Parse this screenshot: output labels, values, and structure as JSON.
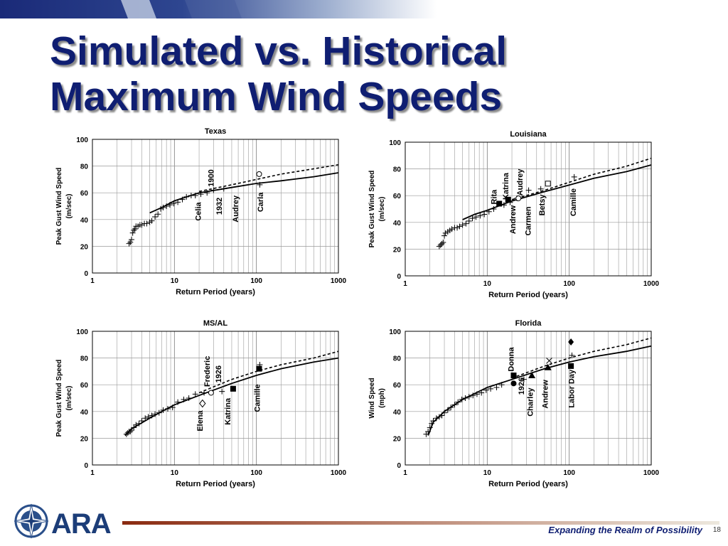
{
  "slide": {
    "title_line1": "Simulated vs. Historical",
    "title_line2": "Maximum Wind Speeds",
    "tagline": "Expanding the Realm of Possibility",
    "page_number": "18",
    "logo_text": "ARA",
    "colors": {
      "title": "#0f1e72",
      "tagline": "#0f1e72",
      "rule_dark": "#8a2a10",
      "rule_light": "#e8e3d8"
    }
  },
  "chart_data": [
    {
      "type": "scatter",
      "title": "Texas",
      "xlabel": "Return Period (years)",
      "ylabel": "Peak Gust Wind Speed (m/sec)",
      "x_scale": "log",
      "xlim": [
        1,
        1000
      ],
      "ylim": [
        0,
        100
      ],
      "x_ticks": [
        "1",
        "10",
        "100",
        "1000"
      ],
      "y_ticks": [
        "0",
        "20",
        "40",
        "60",
        "80",
        "100"
      ],
      "grid": true,
      "series": [
        {
          "line": "solid",
          "x": [
            5,
            7,
            10,
            20,
            50,
            100,
            200,
            500,
            1000
          ],
          "y": [
            45,
            49,
            54,
            60,
            64,
            67,
            69,
            72,
            75
          ]
        },
        {
          "line": "dashed",
          "x": [
            20,
            50,
            100,
            200,
            500,
            1000
          ],
          "y": [
            61,
            66,
            70,
            74,
            78,
            81
          ]
        },
        {
          "marker": "plus",
          "x": [
            2.8,
            2.9,
            3.0,
            3.1,
            3.2,
            3.3,
            3.4,
            3.6,
            3.8,
            4.0,
            4.3,
            4.6,
            5.0,
            5.3,
            5.8,
            6.3,
            6.8,
            7.3,
            8.0,
            8.8,
            9.8,
            11,
            12.5,
            14,
            16,
            18,
            21,
            25,
            30,
            40,
            110
          ],
          "y": [
            22,
            23,
            25,
            30,
            32,
            33,
            35,
            35,
            36,
            36,
            37,
            37,
            38,
            39,
            42,
            44,
            48,
            49,
            50,
            51,
            52,
            53,
            55,
            57,
            58,
            58,
            59,
            60,
            62,
            63,
            66
          ]
        },
        {
          "marker": "circle",
          "x": [
            108
          ],
          "y": [
            74
          ]
        }
      ],
      "annotations": [
        {
          "text": "Celia",
          "x": 21,
          "y": 46
        },
        {
          "text": "1900",
          "x": 30,
          "y": 71
        },
        {
          "text": "1932",
          "x": 38,
          "y": 50
        },
        {
          "text": "Audrey",
          "x": 60,
          "y": 48
        },
        {
          "text": "Carla",
          "x": 120,
          "y": 53
        }
      ]
    },
    {
      "type": "scatter",
      "title": "Louisiana",
      "xlabel": "Return Period (years)",
      "ylabel": "Peak Gust Wind Speed (m/sec)",
      "x_scale": "log",
      "xlim": [
        1,
        1000
      ],
      "ylim": [
        0,
        100
      ],
      "x_ticks": [
        "1",
        "10",
        "100",
        "1000"
      ],
      "y_ticks": [
        "0",
        "20",
        "40",
        "60",
        "80",
        "100"
      ],
      "grid": true,
      "series": [
        {
          "line": "solid",
          "x": [
            5,
            7,
            10,
            20,
            50,
            100,
            200,
            500,
            1000
          ],
          "y": [
            42,
            46,
            49,
            56,
            63,
            68,
            73,
            78,
            83
          ]
        },
        {
          "line": "dashed",
          "x": [
            20,
            50,
            100,
            200,
            500,
            1000
          ],
          "y": [
            57,
            64,
            70,
            76,
            82,
            88
          ]
        },
        {
          "marker": "plus",
          "x": [
            2.6,
            2.7,
            2.8,
            2.9,
            3.0,
            3.1,
            3.3,
            3.5,
            3.7,
            4.0,
            4.3,
            4.6,
            5.0,
            5.5,
            6.0,
            6.6,
            7.3,
            8.2,
            9.2,
            10.5,
            12,
            16,
            19,
            23,
            32,
            45,
            115
          ],
          "y": [
            22,
            23,
            24,
            25,
            30,
            32,
            33,
            34,
            35,
            36,
            36,
            37,
            38,
            39,
            41,
            43,
            44,
            45,
            46,
            48,
            50,
            53,
            55,
            58,
            64,
            65,
            74
          ]
        },
        {
          "marker": "square-filled",
          "x": [
            14,
            18
          ],
          "y": [
            54,
            57
          ]
        },
        {
          "marker": "square-open",
          "x": [
            55
          ],
          "y": [
            69
          ]
        },
        {
          "marker": "circle",
          "x": [
            24
          ],
          "y": [
            58
          ]
        }
      ],
      "annotations": [
        {
          "text": "Rita",
          "x": 13,
          "y": 59
        },
        {
          "text": "Katrina",
          "x": 18,
          "y": 67
        },
        {
          "text": "Audrey",
          "x": 27,
          "y": 70
        },
        {
          "text": "Andrew",
          "x": 22,
          "y": 42
        },
        {
          "text": "Carmen",
          "x": 34,
          "y": 41
        },
        {
          "text": "Betsy",
          "x": 50,
          "y": 53
        },
        {
          "text": "Camille",
          "x": 120,
          "y": 55
        }
      ]
    },
    {
      "type": "scatter",
      "title": "MS/AL",
      "xlabel": "Return Period (years)",
      "ylabel": "Peak Gust Wind Speed (m/sec)",
      "x_scale": "log",
      "xlim": [
        1,
        1000
      ],
      "ylim": [
        0,
        100
      ],
      "x_ticks": [
        "1",
        "10",
        "100",
        "1000"
      ],
      "y_ticks": [
        "0",
        "20",
        "40",
        "60",
        "80",
        "100"
      ],
      "grid": true,
      "series": [
        {
          "line": "solid",
          "x": [
            2.5,
            3,
            5,
            7,
            10,
            20,
            50,
            100,
            200,
            500,
            1000
          ],
          "y": [
            22,
            27,
            35,
            40,
            45,
            52,
            61,
            67,
            72,
            77,
            80
          ]
        },
        {
          "line": "dashed",
          "x": [
            20,
            50,
            100,
            200,
            500,
            1000
          ],
          "y": [
            54,
            64,
            70,
            75,
            80,
            85
          ]
        },
        {
          "marker": "plus",
          "x": [
            2.6,
            2.7,
            2.8,
            2.9,
            3.0,
            3.2,
            3.4,
            3.7,
            4.0,
            4.4,
            4.8,
            5.3,
            5.8,
            6.5,
            7.3,
            8.3,
            9.5,
            11,
            13,
            15,
            18,
            23,
            38,
            110
          ],
          "y": [
            23,
            24,
            25,
            25,
            26,
            28,
            30,
            31,
            33,
            35,
            36,
            37,
            38,
            39,
            41,
            42,
            43,
            47,
            49,
            50,
            53,
            54,
            55,
            75
          ]
        },
        {
          "marker": "square-filled",
          "x": [
            108,
            52
          ],
          "y": [
            72,
            57
          ]
        },
        {
          "marker": "diamond-open",
          "x": [
            22
          ],
          "y": [
            46
          ]
        },
        {
          "marker": "circle",
          "x": [
            28
          ],
          "y": [
            54
          ]
        }
      ],
      "annotations": [
        {
          "text": "Elena",
          "x": 22,
          "y": 33
        },
        {
          "text": "Frederic",
          "x": 27,
          "y": 70
        },
        {
          "text": "1926",
          "x": 37,
          "y": 68
        },
        {
          "text": "Katrina",
          "x": 48,
          "y": 40
        },
        {
          "text": "Camille",
          "x": 110,
          "y": 50
        }
      ]
    },
    {
      "type": "scatter",
      "title": "Florida",
      "xlabel": "Return Period (years)",
      "ylabel": "Wind Speed (mph)",
      "x_scale": "log",
      "xlim": [
        1,
        1000
      ],
      "ylim": [
        0,
        100
      ],
      "x_ticks": [
        "1",
        "10",
        "100",
        "1000"
      ],
      "y_ticks": [
        "0",
        "20",
        "40",
        "60",
        "80",
        "100"
      ],
      "grid": true,
      "series": [
        {
          "line": "solid",
          "x": [
            1.9,
            2.2,
            3,
            5,
            10,
            20,
            50,
            100,
            200,
            500,
            1000
          ],
          "y": [
            22,
            32,
            40,
            49,
            58,
            64,
            72,
            77,
            81,
            85,
            89
          ]
        },
        {
          "line": "dashed",
          "x": [
            20,
            50,
            100,
            200,
            500,
            1000
          ],
          "y": [
            65,
            74,
            80,
            85,
            90,
            95
          ]
        },
        {
          "marker": "plus",
          "x": [
            1.8,
            1.9,
            2.0,
            2.1,
            2.2,
            2.4,
            2.6,
            2.8,
            3.0,
            3.3,
            3.6,
            4.0,
            4.4,
            4.9,
            5.4,
            6.0,
            6.7,
            7.5,
            8.5,
            9.7,
            11,
            13,
            15,
            28,
            108
          ],
          "y": [
            23,
            25,
            28,
            31,
            33,
            35,
            36,
            37,
            39,
            41,
            43,
            45,
            47,
            49,
            50,
            51,
            52,
            53,
            54,
            56,
            57,
            58,
            60,
            64,
            82
          ]
        },
        {
          "marker": "square-filled",
          "x": [
            21,
            105
          ],
          "y": [
            67,
            74
          ]
        },
        {
          "marker": "circle-filled",
          "x": [
            21
          ],
          "y": [
            61
          ]
        },
        {
          "marker": "triangle-filled",
          "x": [
            35,
            55
          ],
          "y": [
            67,
            73
          ]
        },
        {
          "marker": "diamond-filled",
          "x": [
            105
          ],
          "y": [
            92
          ]
        },
        {
          "marker": "cross",
          "x": [
            57
          ],
          "y": [
            78
          ]
        }
      ],
      "annotations": [
        {
          "text": "Donna",
          "x": 21,
          "y": 79
        },
        {
          "text": "1926",
          "x": 28,
          "y": 59
        },
        {
          "text": "Charley",
          "x": 36,
          "y": 47
        },
        {
          "text": "Andrew",
          "x": 55,
          "y": 53
        },
        {
          "text": "Labor Day",
          "x": 115,
          "y": 57
        }
      ]
    }
  ]
}
